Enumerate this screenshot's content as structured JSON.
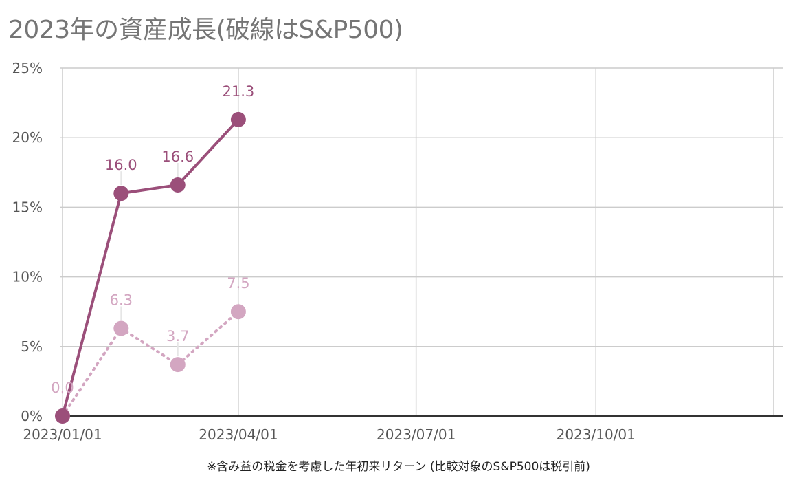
{
  "title": "2023年の資産成長(破線はS&P500)",
  "note": "※含み益の税金を考慮した年初来リターン (比較対象のS&P500は税引前)",
  "colors": {
    "primary": "#9b4f7a",
    "secondary": "#d3a6c1",
    "grid": "#cccccc",
    "axis": "#333333"
  },
  "chart_data": {
    "type": "line",
    "x_ticks": [
      "2023/01/01",
      "2023/04/01",
      "2023/07/01",
      "2023/10/01"
    ],
    "y_ticks": [
      "0%",
      "5%",
      "10%",
      "15%",
      "20%",
      "25%"
    ],
    "ylim": [
      0,
      25
    ],
    "xlim": [
      "2023/01/01",
      "2023/12/31"
    ],
    "grid": true,
    "series": [
      {
        "key": "portfolio",
        "style": "solid",
        "color": "#9b4f7a",
        "points": [
          {
            "x": "2023/01/01",
            "y": 0.0,
            "label": ""
          },
          {
            "x": "2023/01/31",
            "y": 16.0,
            "label": "16.0"
          },
          {
            "x": "2023/03/01",
            "y": 16.6,
            "label": "16.6"
          },
          {
            "x": "2023/04/01",
            "y": 21.3,
            "label": "21.3"
          }
        ]
      },
      {
        "key": "sp500",
        "style": "dotted",
        "color": "#d3a6c1",
        "points": [
          {
            "x": "2023/01/01",
            "y": 0.0,
            "label": "0.0"
          },
          {
            "x": "2023/01/31",
            "y": 6.3,
            "label": "6.3"
          },
          {
            "x": "2023/03/01",
            "y": 3.7,
            "label": "3.7"
          },
          {
            "x": "2023/04/01",
            "y": 7.5,
            "label": "7.5"
          }
        ]
      }
    ]
  }
}
